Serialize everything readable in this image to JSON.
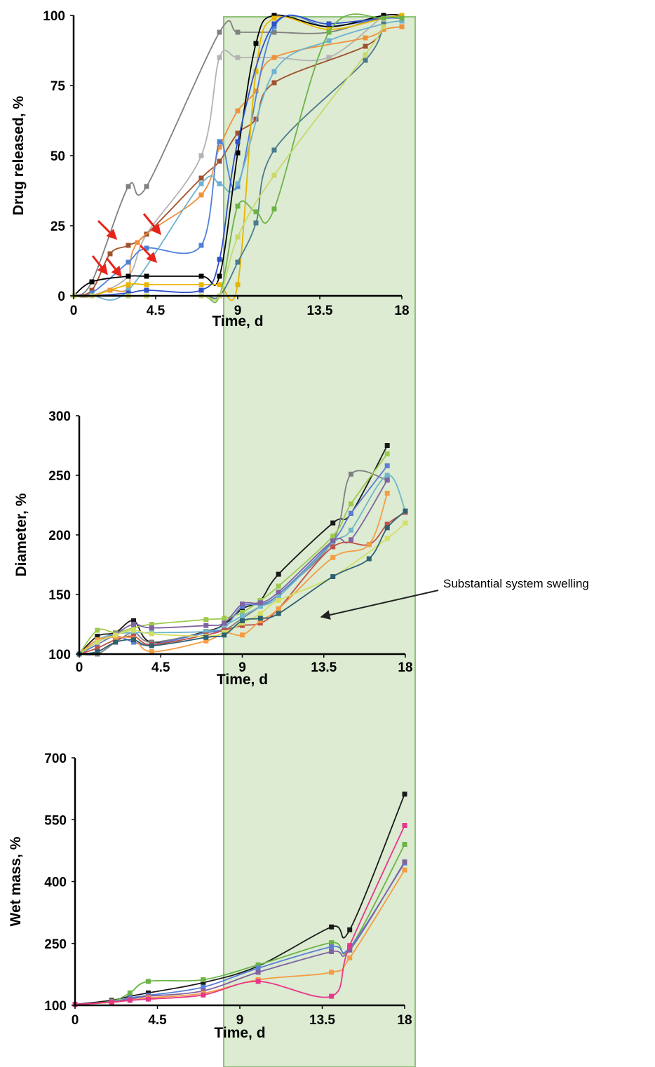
{
  "colors": {
    "shade_fill": "#dcebd2",
    "shade_stroke": "#8fc27a",
    "arrow_red": "#e8231a",
    "annotation_arrow": "#222222"
  },
  "annotation": {
    "text": "Substantial system swelling"
  },
  "chart_data": [
    {
      "type": "line",
      "xlabel": "Time, d",
      "ylabel": "Drug released, %",
      "xlim": [
        0,
        18
      ],
      "ylim": [
        0,
        100
      ],
      "xticks": [
        "0",
        "4.5",
        "9",
        "13.5",
        "18"
      ],
      "yticks": [
        "0",
        "25",
        "50",
        "75",
        "100"
      ],
      "shaded_region_x": [
        8,
        18.8
      ],
      "grid": false,
      "series": [
        {
          "color": "#808080",
          "x": [
            0,
            1,
            3,
            4,
            8,
            9,
            11,
            14,
            17
          ],
          "y": [
            0,
            5,
            39,
            39,
            94,
            94,
            94,
            94,
            100
          ]
        },
        {
          "color": "#b3b3b3",
          "x": [
            0,
            1,
            3,
            4,
            7,
            8,
            9,
            11,
            14,
            17
          ],
          "y": [
            0,
            0,
            7,
            22,
            50,
            85,
            85,
            85,
            85,
            100
          ]
        },
        {
          "color": "#a0522d",
          "x": [
            0,
            1,
            2,
            3,
            4,
            7,
            8,
            9,
            10,
            11,
            16,
            17
          ],
          "y": [
            0,
            2,
            15,
            18,
            22,
            42,
            48,
            58,
            63,
            76,
            89,
            96
          ]
        },
        {
          "color": "#f0913a",
          "x": [
            0,
            1,
            2,
            3,
            3.5,
            7,
            8,
            9,
            10,
            11,
            16,
            17,
            18
          ],
          "y": [
            0,
            0,
            2,
            3,
            19,
            36,
            53,
            66,
            73,
            85,
            92,
            95,
            96
          ]
        },
        {
          "color": "#4f81d9",
          "x": [
            0,
            1,
            3,
            4,
            7,
            8,
            9,
            11,
            14,
            17,
            18
          ],
          "y": [
            0,
            1,
            12,
            17,
            18,
            55,
            39,
            96,
            96,
            99,
            100
          ]
        },
        {
          "color": "#6fb1d0",
          "x": [
            0,
            1,
            3,
            7,
            8,
            9,
            11,
            14,
            17,
            18
          ],
          "y": [
            0,
            0,
            2,
            40,
            40,
            40,
            80,
            91,
            97,
            98
          ]
        },
        {
          "color": "#000000",
          "x": [
            0,
            1,
            3,
            4,
            7,
            8,
            9,
            10,
            11,
            14,
            17,
            18
          ],
          "y": [
            0,
            5,
            7,
            7,
            7,
            7,
            51,
            90,
            100,
            96,
            100,
            100
          ]
        },
        {
          "color": "#e8b400",
          "x": [
            0,
            1,
            3,
            4,
            7,
            8,
            9,
            10,
            11,
            14,
            17,
            18
          ],
          "y": [
            0,
            0,
            4,
            4,
            4,
            4,
            4,
            80,
            99,
            95,
            99,
            100
          ]
        },
        {
          "color": "#2e50c8",
          "x": [
            0,
            1,
            3,
            4,
            7,
            8,
            9,
            11,
            14,
            17,
            18
          ],
          "y": [
            0,
            0,
            1,
            2,
            2,
            13,
            55,
            97,
            97,
            99,
            99
          ]
        },
        {
          "color": "#4a7a8c",
          "x": [
            0,
            1,
            3,
            4,
            7,
            8,
            9,
            10,
            11,
            16,
            17
          ],
          "y": [
            0,
            0,
            0,
            0,
            0,
            0,
            12,
            26,
            52,
            84,
            97
          ]
        },
        {
          "color": "#6cb347",
          "x": [
            0,
            1,
            3,
            4,
            7,
            8,
            9,
            10,
            11,
            14,
            17,
            18
          ],
          "y": [
            0,
            0,
            0,
            0,
            0,
            0,
            32,
            30,
            31,
            94,
            99,
            99
          ]
        },
        {
          "color": "#c9d86a",
          "x": [
            0,
            1,
            3,
            4,
            7,
            8,
            9,
            11,
            16,
            17
          ],
          "y": [
            0,
            0,
            0,
            0,
            0,
            0,
            21,
            43,
            86,
            96
          ]
        }
      ]
    },
    {
      "type": "line",
      "xlabel": "Time, d",
      "ylabel": "Diameter, %",
      "xlim": [
        0,
        18
      ],
      "ylim": [
        100,
        300
      ],
      "xticks": [
        "0",
        "4.5",
        "9",
        "13.5",
        "18"
      ],
      "yticks": [
        "100",
        "150",
        "200",
        "250",
        "300"
      ],
      "shaded_region_x": [
        7.9,
        18.5
      ],
      "grid": false,
      "series": [
        {
          "color": "#1a1a1a",
          "x": [
            0,
            1,
            2,
            3,
            4,
            7,
            8,
            9,
            10,
            11,
            14,
            15,
            17
          ],
          "y": [
            100,
            115,
            118,
            128,
            110,
            119,
            125,
            138,
            145,
            167,
            210,
            218,
            275
          ]
        },
        {
          "color": "#808080",
          "x": [
            0,
            1,
            2,
            3,
            4,
            7,
            8,
            9,
            10,
            11,
            14,
            15,
            17
          ],
          "y": [
            100,
            100,
            110,
            118,
            110,
            118,
            120,
            130,
            140,
            150,
            195,
            251,
            246
          ]
        },
        {
          "color": "#9dc94f",
          "x": [
            0,
            1,
            2,
            3,
            4,
            7,
            8,
            9,
            10,
            11,
            14,
            15,
            17
          ],
          "y": [
            100,
            120,
            118,
            122,
            125,
            129,
            130,
            135,
            145,
            157,
            199,
            226,
            268
          ]
        },
        {
          "color": "#5b7fd6",
          "x": [
            0,
            1,
            2,
            3,
            4,
            7,
            8,
            9,
            10,
            11,
            14,
            15,
            17
          ],
          "y": [
            100,
            108,
            115,
            110,
            108,
            118,
            122,
            140,
            142,
            150,
            195,
            218,
            258
          ]
        },
        {
          "color": "#6fb7c9",
          "x": [
            0,
            1,
            2,
            3,
            4,
            7,
            8,
            9,
            10,
            11,
            14,
            15,
            17,
            18
          ],
          "y": [
            100,
            112,
            117,
            118,
            118,
            119,
            124,
            132,
            140,
            148,
            193,
            204,
            250,
            220
          ]
        },
        {
          "color": "#8064a2",
          "x": [
            0,
            1,
            2,
            3,
            4,
            7,
            8,
            9,
            10,
            11,
            14,
            15,
            17
          ],
          "y": [
            100,
            110,
            117,
            125,
            122,
            124,
            126,
            142,
            143,
            152,
            195,
            196,
            246
          ]
        },
        {
          "color": "#c0504d",
          "x": [
            0,
            1,
            2,
            3,
            4,
            7,
            8,
            9,
            10,
            11,
            14,
            16,
            17,
            18
          ],
          "y": [
            100,
            105,
            112,
            115,
            108,
            116,
            120,
            124,
            126,
            138,
            190,
            192,
            209,
            219
          ]
        },
        {
          "color": "#f59d43",
          "x": [
            0,
            1,
            2,
            3,
            4,
            7,
            8,
            9,
            10,
            11,
            14,
            16,
            17
          ],
          "y": [
            100,
            112,
            114,
            113,
            102,
            111,
            118,
            116,
            128,
            138,
            181,
            192,
            235
          ]
        },
        {
          "color": "#d4df62",
          "x": [
            0,
            1,
            2,
            3,
            4,
            7,
            8,
            9,
            10,
            11,
            14,
            17,
            18
          ],
          "y": [
            100,
            110,
            116,
            120,
            117,
            115,
            118,
            126,
            134,
            145,
            165,
            197,
            210
          ]
        },
        {
          "color": "#2f6170",
          "x": [
            0,
            1,
            2,
            3,
            4,
            7,
            8,
            9,
            10,
            11,
            14,
            16,
            17,
            18
          ],
          "y": [
            100,
            102,
            110,
            112,
            107,
            114,
            116,
            128,
            130,
            134,
            165,
            180,
            206,
            220
          ]
        }
      ]
    },
    {
      "type": "line",
      "xlabel": "Time, d",
      "ylabel": "Wet mass, %",
      "xlim": [
        0,
        18
      ],
      "ylim": [
        100,
        700
      ],
      "xticks": [
        "0",
        "4.5",
        "9",
        "13.5",
        "18"
      ],
      "yticks": [
        "100",
        "250",
        "400",
        "550",
        "700"
      ],
      "shaded_region_x": [
        7.9,
        18.7
      ],
      "grid": false,
      "series": [
        {
          "color": "#1a1a1a",
          "x": [
            0,
            2,
            3,
            4,
            7,
            10,
            14,
            15,
            18
          ],
          "y": [
            102,
            112,
            122,
            130,
            155,
            195,
            290,
            283,
            612
          ]
        },
        {
          "color": "#6cb347",
          "x": [
            0,
            2,
            3,
            4,
            7,
            10,
            14,
            15,
            18
          ],
          "y": [
            102,
            110,
            130,
            158,
            162,
            198,
            252,
            238,
            490
          ]
        },
        {
          "color": "#5b7fd6",
          "x": [
            0,
            2,
            3,
            4,
            7,
            10,
            14,
            15,
            18
          ],
          "y": [
            102,
            108,
            118,
            124,
            144,
            190,
            242,
            240,
            445
          ]
        },
        {
          "color": "#8064a2",
          "x": [
            0,
            2,
            3,
            4,
            7,
            10,
            14,
            15,
            18
          ],
          "y": [
            102,
            108,
            115,
            122,
            135,
            180,
            230,
            234,
            448
          ]
        },
        {
          "color": "#f59d43",
          "x": [
            0,
            2,
            3,
            4,
            7,
            10,
            14,
            15,
            18
          ],
          "y": [
            102,
            107,
            112,
            118,
            129,
            162,
            180,
            215,
            428
          ]
        },
        {
          "color": "#e8378a",
          "x": [
            0,
            2,
            3,
            4,
            7,
            10,
            14,
            15,
            18
          ],
          "y": [
            102,
            108,
            112,
            115,
            125,
            158,
            122,
            245,
            536
          ]
        }
      ]
    }
  ]
}
